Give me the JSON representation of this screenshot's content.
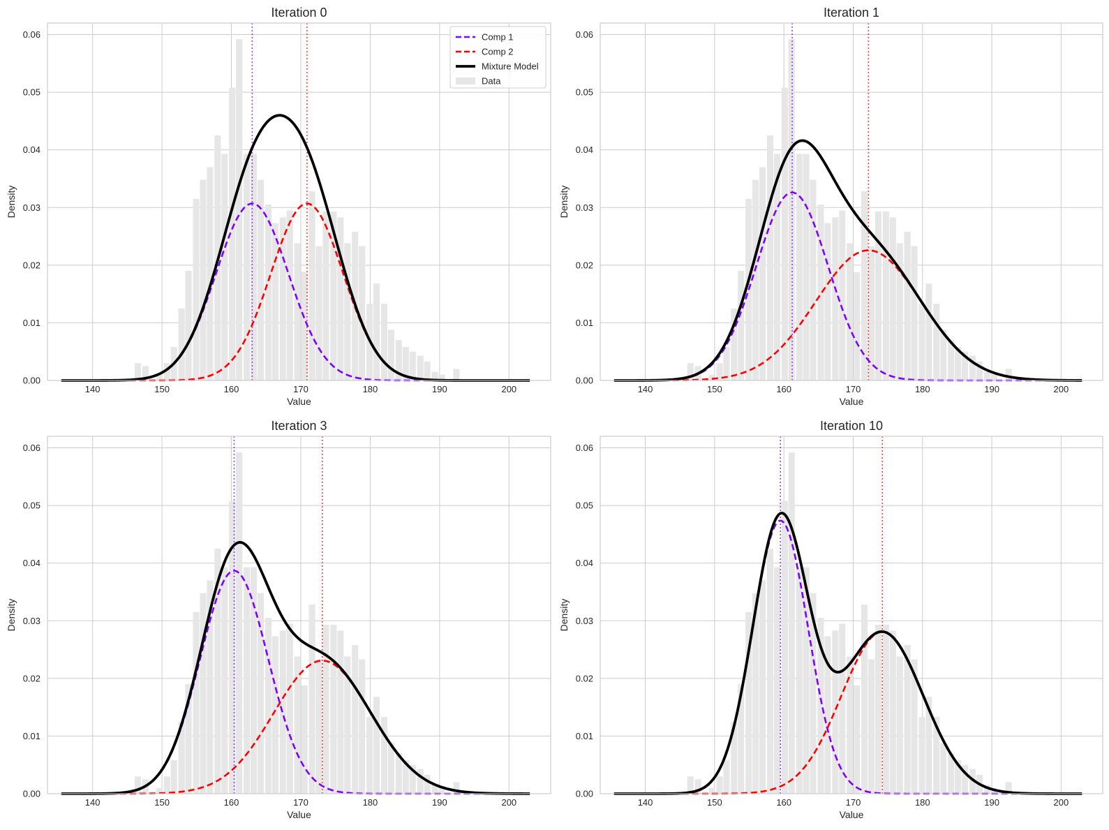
{
  "chart_data": [
    {
      "type": "line",
      "title": "Iteration 0",
      "xlabel": "Value",
      "ylabel": "Density",
      "xlim": [
        133.5,
        206
      ],
      "ylim": [
        0,
        0.062
      ],
      "xticks": [
        140,
        150,
        160,
        170,
        180,
        190,
        200
      ],
      "yticks": [
        "0.00",
        "0.01",
        "0.02",
        "0.03",
        "0.04",
        "0.05",
        "0.06"
      ],
      "grid": true,
      "legend": "top-right",
      "components": [
        {
          "name": "Comp 1",
          "mean": 163.0,
          "sd": 5.2,
          "weight": 0.4,
          "color": "#7f00ff",
          "style": "dashed"
        },
        {
          "name": "Comp 2",
          "mean": 170.9,
          "sd": 5.2,
          "weight": 0.4,
          "color": "#ff0000",
          "style": "dashed"
        }
      ],
      "mixture": {
        "name": "Mixture Model",
        "color": "#000000"
      }
    },
    {
      "type": "line",
      "title": "Iteration 1",
      "xlabel": "Value",
      "ylabel": "Density",
      "xlim": [
        133.5,
        206
      ],
      "ylim": [
        0,
        0.062
      ],
      "xticks": [
        140,
        150,
        160,
        170,
        180,
        190,
        200
      ],
      "yticks": [
        "0.00",
        "0.01",
        "0.02",
        "0.03",
        "0.04",
        "0.05",
        "0.06"
      ],
      "grid": true,
      "components": [
        {
          "name": "Comp 1",
          "mean": 161.2,
          "sd": 5.2,
          "weight": 0.425,
          "color": "#7f00ff",
          "style": "dashed"
        },
        {
          "name": "Comp 2",
          "mean": 172.2,
          "sd": 7.6,
          "weight": 0.43,
          "color": "#ff0000",
          "style": "dashed"
        }
      ],
      "mixture": {
        "name": "Mixture Model",
        "color": "#000000"
      }
    },
    {
      "type": "line",
      "title": "Iteration 3",
      "xlabel": "Value",
      "ylabel": "Density",
      "xlim": [
        133.5,
        206
      ],
      "ylim": [
        0,
        0.062
      ],
      "xticks": [
        140,
        150,
        160,
        170,
        180,
        190,
        200
      ],
      "yticks": [
        "0.00",
        "0.01",
        "0.02",
        "0.03",
        "0.04",
        "0.05",
        "0.06"
      ],
      "grid": true,
      "components": [
        {
          "name": "Comp 1",
          "mean": 160.4,
          "sd": 4.9,
          "weight": 0.475,
          "color": "#7f00ff",
          "style": "dashed"
        },
        {
          "name": "Comp 2",
          "mean": 173.1,
          "sd": 7.0,
          "weight": 0.405,
          "color": "#ff0000",
          "style": "dashed"
        }
      ],
      "mixture": {
        "name": "Mixture Model",
        "color": "#000000"
      }
    },
    {
      "type": "line",
      "title": "Iteration 10",
      "xlabel": "Value",
      "ylabel": "Density",
      "xlim": [
        133.5,
        206
      ],
      "ylim": [
        0,
        0.062
      ],
      "xticks": [
        140,
        150,
        160,
        170,
        180,
        190,
        200
      ],
      "yticks": [
        "0.00",
        "0.01",
        "0.02",
        "0.03",
        "0.04",
        "0.05",
        "0.06"
      ],
      "grid": true,
      "components": [
        {
          "name": "Comp 1",
          "mean": 159.5,
          "sd": 4.0,
          "weight": 0.475,
          "color": "#7f00ff",
          "style": "dashed"
        },
        {
          "name": "Comp 2",
          "mean": 174.2,
          "sd": 5.9,
          "weight": 0.415,
          "color": "#ff0000",
          "style": "dashed"
        }
      ],
      "mixture": {
        "name": "Mixture Model",
        "color": "#000000"
      }
    }
  ],
  "histogram": {
    "name": "Data",
    "color": "#e6e6e6",
    "bin_width": 1.035,
    "bins": [
      {
        "x0": 146.0,
        "d": 0.003
      },
      {
        "x0": 147.1,
        "d": 0.0025
      },
      {
        "x0": 148.1,
        "d": 0.0
      },
      {
        "x0": 149.1,
        "d": 0.001
      },
      {
        "x0": 150.2,
        "d": 0.003
      },
      {
        "x0": 151.2,
        "d": 0.0058
      },
      {
        "x0": 152.3,
        "d": 0.0125
      },
      {
        "x0": 153.3,
        "d": 0.019
      },
      {
        "x0": 154.4,
        "d": 0.0315
      },
      {
        "x0": 155.4,
        "d": 0.0348
      },
      {
        "x0": 156.4,
        "d": 0.037
      },
      {
        "x0": 157.5,
        "d": 0.0425
      },
      {
        "x0": 158.5,
        "d": 0.0393
      },
      {
        "x0": 159.6,
        "d": 0.0508
      },
      {
        "x0": 160.6,
        "d": 0.0592
      },
      {
        "x0": 161.7,
        "d": 0.0393
      },
      {
        "x0": 162.7,
        "d": 0.0393
      },
      {
        "x0": 163.7,
        "d": 0.0348
      },
      {
        "x0": 164.8,
        "d": 0.0305
      },
      {
        "x0": 165.8,
        "d": 0.0273
      },
      {
        "x0": 166.9,
        "d": 0.0283
      },
      {
        "x0": 167.9,
        "d": 0.0295
      },
      {
        "x0": 169.0,
        "d": 0.0238
      },
      {
        "x0": 170.0,
        "d": 0.0188
      },
      {
        "x0": 171.1,
        "d": 0.0328
      },
      {
        "x0": 172.1,
        "d": 0.0233
      },
      {
        "x0": 173.1,
        "d": 0.0293
      },
      {
        "x0": 174.2,
        "d": 0.0293
      },
      {
        "x0": 175.2,
        "d": 0.0283
      },
      {
        "x0": 176.2,
        "d": 0.0238
      },
      {
        "x0": 177.3,
        "d": 0.0258
      },
      {
        "x0": 178.3,
        "d": 0.0233
      },
      {
        "x0": 179.4,
        "d": 0.0133
      },
      {
        "x0": 180.4,
        "d": 0.0168
      },
      {
        "x0": 181.5,
        "d": 0.0133
      },
      {
        "x0": 182.5,
        "d": 0.0088
      },
      {
        "x0": 183.6,
        "d": 0.007
      },
      {
        "x0": 184.6,
        "d": 0.0058
      },
      {
        "x0": 185.6,
        "d": 0.005
      },
      {
        "x0": 186.7,
        "d": 0.0043
      },
      {
        "x0": 187.7,
        "d": 0.0033
      },
      {
        "x0": 188.8,
        "d": 0.0015
      },
      {
        "x0": 189.8,
        "d": 0.001
      },
      {
        "x0": 190.8,
        "d": 0.0
      },
      {
        "x0": 191.9,
        "d": 0.002
      }
    ]
  },
  "legend": {
    "items": [
      {
        "label": "Comp 1",
        "color": "#7f00ff",
        "style": "dashed"
      },
      {
        "label": "Comp 2",
        "color": "#ff0000",
        "style": "dashed"
      },
      {
        "label": "Mixture Model",
        "color": "#000000",
        "style": "solid"
      },
      {
        "label": "Data",
        "color": "#e6e6e6",
        "style": "patch"
      }
    ]
  }
}
